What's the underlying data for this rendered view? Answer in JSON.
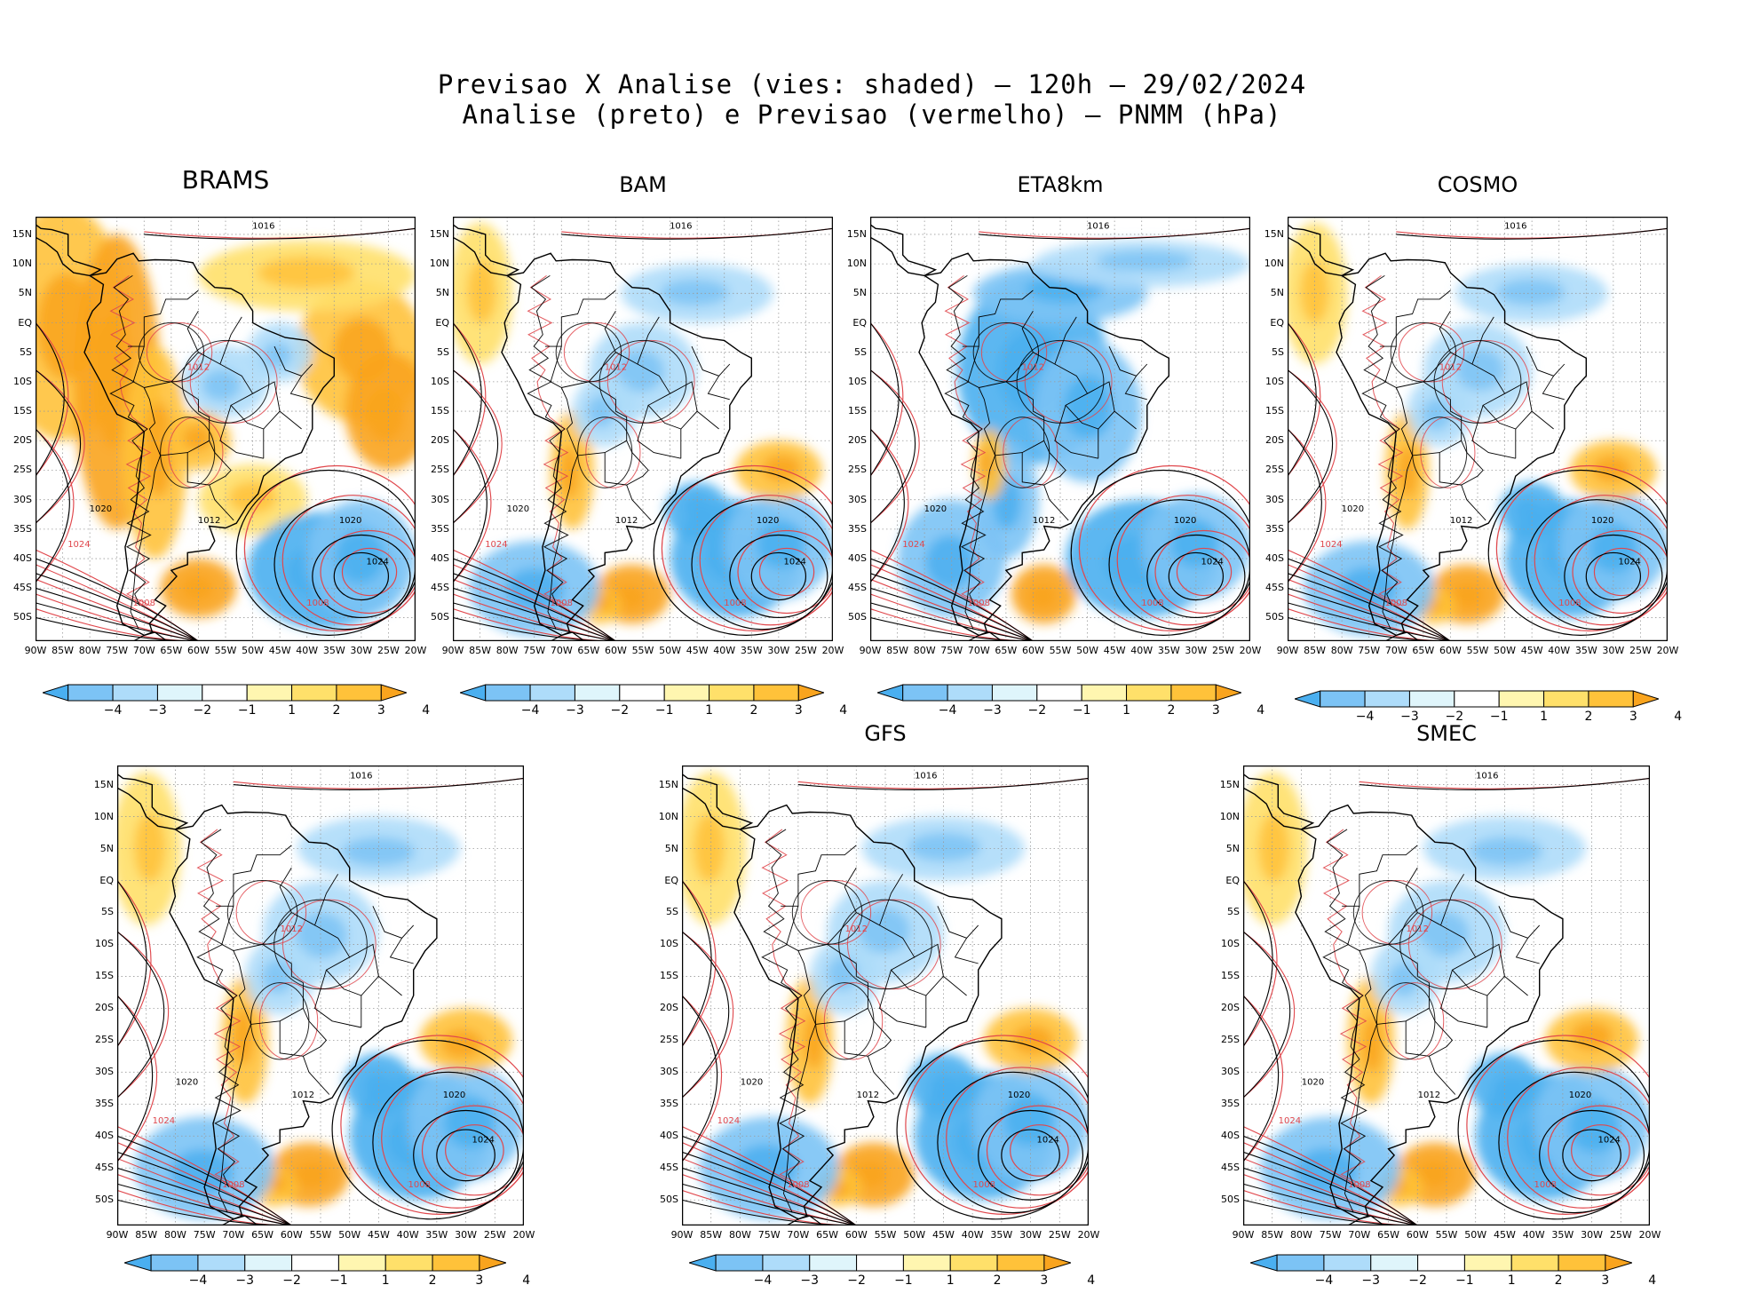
{
  "title_line1": "Previsao X Analise (vies: shaded) – 120h – 29/02/2024",
  "title_line2": "Analise (preto) e Previsao (vermelho) – PNMM (hPa)",
  "lat_labels": [
    "15N",
    "10N",
    "5N",
    "EQ",
    "5S",
    "10S",
    "15S",
    "20S",
    "25S",
    "30S",
    "35S",
    "40S",
    "45S",
    "50S"
  ],
  "lon_labels": [
    "90W",
    "85W",
    "80W",
    "75W",
    "70W",
    "65W",
    "60W",
    "55W",
    "50W",
    "45W",
    "40W",
    "35W",
    "30W",
    "25W",
    "20W"
  ],
  "colorbar": {
    "labels": [
      "−4",
      "−3",
      "−2",
      "−1",
      "1",
      "2",
      "3",
      "4"
    ],
    "colors": [
      "#4aaff0",
      "#7cc3f5",
      "#aedcfa",
      "#dff5fb",
      "#ffffff",
      "#fff6b0",
      "#ffe06a",
      "#ffc23a",
      "#f9a41e"
    ]
  },
  "isobar_labels": [
    "1008",
    "1012",
    "1016",
    "1020",
    "1024"
  ],
  "panels": [
    {
      "name": "BRAMS",
      "bias": "warm"
    },
    {
      "name": "BAM",
      "bias": "mixed"
    },
    {
      "name": "ETA8km",
      "bias": "cold"
    },
    {
      "name": "COSMO",
      "bias": "mixed"
    },
    {
      "name": "",
      "bias": "mixed"
    },
    {
      "name": "GFS",
      "bias": "mixed"
    },
    {
      "name": "SMEC",
      "bias": "mixed"
    }
  ],
  "colors": {
    "analysis_contour": "#000000",
    "forecast_contour": "#e0474c",
    "coast": "#000000"
  }
}
